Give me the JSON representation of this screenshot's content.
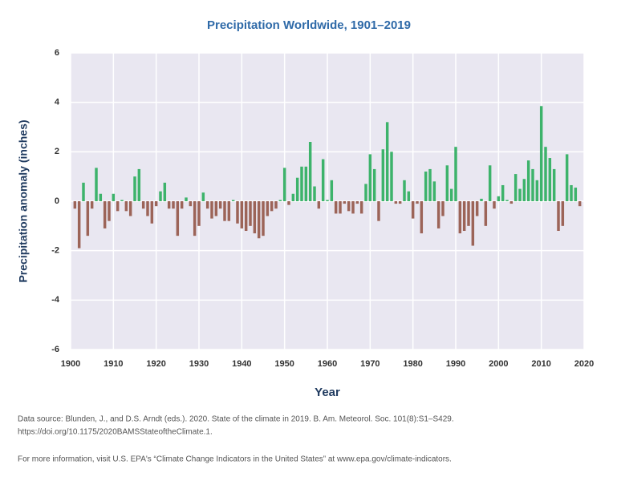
{
  "chart_data": {
    "type": "bar",
    "title": "Precipitation Worldwide, 1901–2019",
    "x_label": "Year",
    "y_label": "Precipitation anomaly (inches)",
    "source": [
      "Data source: Blunden, J., and D.S. Arndt (eds.). 2020. State of the climate in 2019. B. Am. Meteorol. Soc. 101(8):S1–S429.",
      "https://doi.org/10.1175/2020BAMSStateoftheClimate.1."
    ],
    "note": "For more information, visit U.S. EPA's “Climate Change Indicators in the United States” at www.epa.gov/climate-indicators.",
    "x": [
      1901,
      1902,
      1903,
      1904,
      1905,
      1906,
      1907,
      1908,
      1909,
      1910,
      1911,
      1912,
      1913,
      1914,
      1915,
      1916,
      1917,
      1918,
      1919,
      1920,
      1921,
      1922,
      1923,
      1924,
      1925,
      1926,
      1927,
      1928,
      1929,
      1930,
      1931,
      1932,
      1933,
      1934,
      1935,
      1936,
      1937,
      1938,
      1939,
      1940,
      1941,
      1942,
      1943,
      1944,
      1945,
      1946,
      1947,
      1948,
      1949,
      1950,
      1951,
      1952,
      1953,
      1954,
      1955,
      1956,
      1957,
      1958,
      1959,
      1960,
      1961,
      1962,
      1963,
      1964,
      1965,
      1966,
      1967,
      1968,
      1969,
      1970,
      1971,
      1972,
      1973,
      1974,
      1975,
      1976,
      1977,
      1978,
      1979,
      1980,
      1981,
      1982,
      1983,
      1984,
      1985,
      1986,
      1987,
      1988,
      1989,
      1990,
      1991,
      1992,
      1993,
      1994,
      1995,
      1996,
      1997,
      1998,
      1999,
      2000,
      2001,
      2002,
      2003,
      2004,
      2005,
      2006,
      2007,
      2008,
      2009,
      2010,
      2011,
      2012,
      2013,
      2014,
      2015,
      2016,
      2017,
      2018,
      2019
    ],
    "values": [
      -0.3,
      -1.9,
      0.75,
      -1.4,
      -0.3,
      1.35,
      0.3,
      -1.1,
      -0.8,
      0.3,
      -0.4,
      0.05,
      -0.4,
      -0.6,
      1.0,
      1.3,
      -0.3,
      -0.6,
      -0.9,
      -0.2,
      0.4,
      0.75,
      -0.3,
      -0.3,
      -1.4,
      -0.3,
      0.15,
      -0.2,
      -1.4,
      -1.0,
      0.35,
      -0.3,
      -0.7,
      -0.6,
      -0.3,
      -0.8,
      -0.8,
      0.05,
      -0.9,
      -1.1,
      -1.2,
      -1.0,
      -1.3,
      -1.5,
      -1.4,
      -0.6,
      -0.4,
      -0.3,
      0.05,
      1.35,
      -0.15,
      0.3,
      0.95,
      1.4,
      1.4,
      2.4,
      0.6,
      -0.3,
      1.7,
      0.05,
      0.85,
      -0.5,
      -0.5,
      -0.1,
      -0.4,
      -0.5,
      -0.1,
      -0.5,
      0.7,
      1.9,
      1.3,
      -0.8,
      2.1,
      3.2,
      2.0,
      -0.1,
      -0.1,
      0.85,
      0.4,
      -0.7,
      -0.1,
      -1.3,
      1.2,
      1.3,
      0.8,
      -1.1,
      -0.6,
      1.45,
      0.5,
      2.2,
      -1.3,
      -1.2,
      -1.0,
      -1.8,
      -0.6,
      0.1,
      -1.0,
      1.45,
      -0.3,
      0.2,
      0.65,
      0.05,
      -0.1,
      1.1,
      0.5,
      0.9,
      1.65,
      1.3,
      0.85,
      3.85,
      2.2,
      1.75,
      1.3,
      -1.2,
      -1.0,
      1.9,
      0.65,
      0.55,
      -0.2
    ],
    "positive_color": "#3db36b",
    "negative_color": "#9c6458",
    "xlim": [
      1900,
      2020
    ],
    "xticks": [
      1900,
      1910,
      1920,
      1930,
      1940,
      1950,
      1960,
      1970,
      1980,
      1990,
      2000,
      2010,
      2020
    ],
    "ylim": [
      -6,
      6
    ],
    "yticks": [
      -6,
      -4,
      -2,
      0,
      2,
      4,
      6
    ],
    "grid": true
  }
}
